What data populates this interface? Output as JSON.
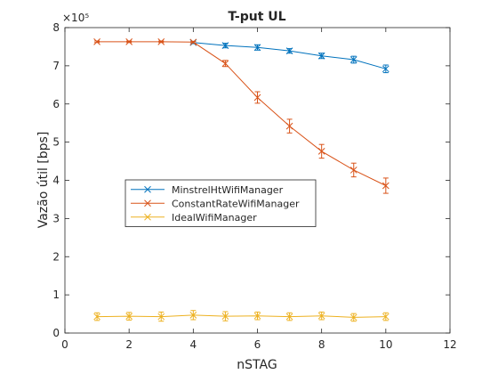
{
  "chart_data": {
    "type": "line",
    "title": "T-put UL",
    "xlabel": "nSTAG",
    "ylabel": "Vazão útil [bps]",
    "y_exponent_label": "×10⁵",
    "xlim": [
      0,
      12
    ],
    "ylim": [
      0,
      8
    ],
    "y_scale_factor": 100000,
    "x_ticks": [
      "0",
      "2",
      "4",
      "6",
      "8",
      "10",
      "12"
    ],
    "y_ticks": [
      "0",
      "1",
      "2",
      "3",
      "4",
      "5",
      "6",
      "7",
      "8"
    ],
    "grid": false,
    "legend_position": "center-left",
    "x": [
      1,
      2,
      3,
      4,
      5,
      6,
      7,
      8,
      9,
      10
    ],
    "series": [
      {
        "name": "MinstrelHtWifiManager",
        "color": "#0072BD",
        "x": [
          4,
          5,
          6,
          7,
          8,
          9,
          10
        ],
        "values": [
          7.61,
          7.53,
          7.48,
          7.39,
          7.26,
          7.16,
          6.92
        ],
        "errors": [
          0.03,
          0.06,
          0.07,
          0.06,
          0.07,
          0.09,
          0.1
        ]
      },
      {
        "name": "ConstantRateWifiManager",
        "color": "#D95319",
        "x": [
          1,
          2,
          3,
          4,
          5,
          6,
          7,
          8,
          9,
          10
        ],
        "values": [
          7.63,
          7.63,
          7.63,
          7.62,
          7.06,
          6.17,
          5.42,
          4.76,
          4.27,
          3.86
        ],
        "errors": [
          0.02,
          0.02,
          0.02,
          0.02,
          0.08,
          0.15,
          0.18,
          0.18,
          0.18,
          0.2
        ]
      },
      {
        "name": "IdealWifiManager",
        "color": "#EDB120",
        "x": [
          1,
          2,
          3,
          4,
          5,
          6,
          7,
          8,
          9,
          10
        ],
        "values": [
          0.43,
          0.44,
          0.43,
          0.47,
          0.44,
          0.45,
          0.43,
          0.45,
          0.41,
          0.43
        ],
        "errors": [
          0.1,
          0.1,
          0.12,
          0.12,
          0.12,
          0.1,
          0.1,
          0.1,
          0.1,
          0.1
        ]
      }
    ]
  }
}
